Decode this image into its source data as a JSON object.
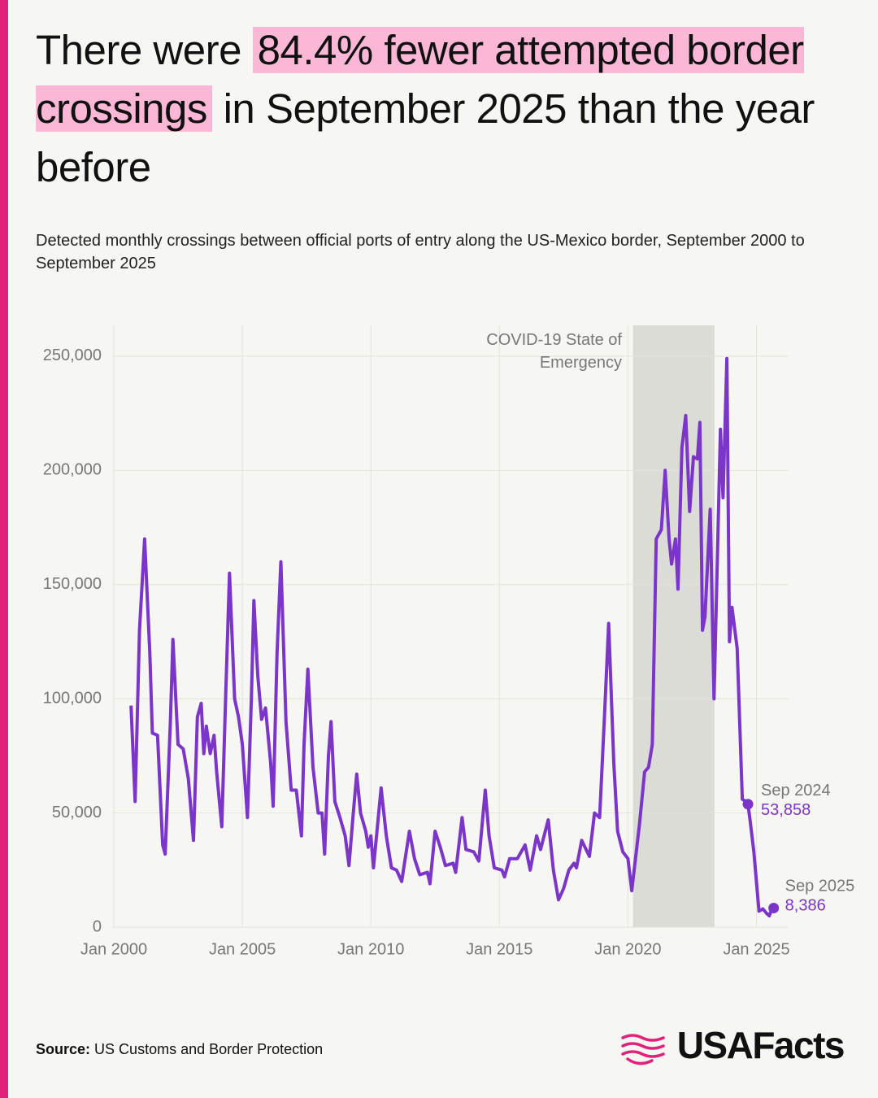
{
  "chart_data": {
    "type": "line",
    "title_parts": [
      "There were ",
      "84.4% fewer attempted border crossings",
      " in September 2025 than the year before"
    ],
    "subtitle": "Detected monthly crossings between official ports of entry along the US-Mexico border, September 2000 to September 2025",
    "color": "#7b35c9",
    "grid": true,
    "xlim": [
      2000,
      2026.25
    ],
    "xticks": [
      {
        "value": 2000,
        "label": "Jan 2000"
      },
      {
        "value": 2005,
        "label": "Jan 2005"
      },
      {
        "value": 2010,
        "label": "Jan 2010"
      },
      {
        "value": 2015,
        "label": "Jan 2015"
      },
      {
        "value": 2020,
        "label": "Jan 2020"
      },
      {
        "value": 2025,
        "label": "Jan 2025"
      }
    ],
    "ylim": [
      0,
      263500
    ],
    "yticks": [
      0,
      {
        "value": 50000,
        "label": "50,000"
      },
      {
        "value": 100000,
        "label": "100,000"
      },
      {
        "value": 150000,
        "label": "150,000"
      },
      {
        "value": 200000,
        "label": "200,000"
      },
      {
        "value": 250000,
        "label": "250,000"
      }
    ],
    "shaded_region": {
      "label": "COVID-19 State of Emergency",
      "x": [
        2020.2,
        2023.37
      ]
    },
    "x": [
      2000.67,
      2000.83,
      2001.0,
      2001.2,
      2001.4,
      2001.5,
      2001.7,
      2001.9,
      2002.0,
      2002.2,
      2002.3,
      2002.5,
      2002.7,
      2002.9,
      2003.1,
      2003.25,
      2003.4,
      2003.5,
      2003.6,
      2003.75,
      2003.9,
      2004.0,
      2004.2,
      2004.35,
      2004.5,
      2004.7,
      2004.85,
      2005.0,
      2005.2,
      2005.35,
      2005.45,
      2005.6,
      2005.75,
      2005.9,
      2006.1,
      2006.2,
      2006.35,
      2006.5,
      2006.7,
      2006.9,
      2007.1,
      2007.3,
      2007.4,
      2007.55,
      2007.75,
      2007.95,
      2008.1,
      2008.2,
      2008.35,
      2008.45,
      2008.6,
      2008.8,
      2009.0,
      2009.15,
      2009.3,
      2009.45,
      2009.6,
      2009.8,
      2009.9,
      2010.0,
      2010.1,
      2010.4,
      2010.6,
      2010.8,
      2011.0,
      2011.2,
      2011.5,
      2011.7,
      2011.9,
      2012.2,
      2012.3,
      2012.5,
      2012.7,
      2012.9,
      2013.2,
      2013.3,
      2013.55,
      2013.7,
      2014.0,
      2014.2,
      2014.45,
      2014.6,
      2014.8,
      2015.1,
      2015.2,
      2015.4,
      2015.7,
      2016.0,
      2016.2,
      2016.45,
      2016.6,
      2016.9,
      2017.1,
      2017.3,
      2017.5,
      2017.7,
      2017.9,
      2018.0,
      2018.2,
      2018.5,
      2018.7,
      2018.9,
      2019.1,
      2019.25,
      2019.45,
      2019.6,
      2019.8,
      2020.0,
      2020.15,
      2020.45,
      2020.65,
      2020.8,
      2020.95,
      2021.1,
      2021.3,
      2021.45,
      2021.6,
      2021.7,
      2021.85,
      2021.95,
      2022.1,
      2022.25,
      2022.4,
      2022.55,
      2022.7,
      2022.8,
      2022.9,
      2023.0,
      2023.2,
      2023.35,
      2023.6,
      2023.7,
      2023.85,
      2023.95,
      2024.05,
      2024.25,
      2024.45,
      2024.6,
      2024.67,
      2024.75,
      2024.9,
      2025.1,
      2025.25,
      2025.4,
      2025.5,
      2025.6,
      2025.67
    ],
    "values": [
      97000,
      55000,
      130000,
      170000,
      120000,
      85000,
      84000,
      36000,
      32000,
      90000,
      126000,
      80000,
      78000,
      65000,
      38000,
      92000,
      98000,
      76000,
      88000,
      76000,
      84000,
      68000,
      44000,
      100000,
      155000,
      100000,
      92000,
      80000,
      48000,
      100000,
      143000,
      110000,
      91000,
      96000,
      72000,
      53000,
      120000,
      160000,
      90000,
      60000,
      60000,
      40000,
      80000,
      113000,
      70000,
      50000,
      50000,
      32000,
      75000,
      90000,
      55000,
      48000,
      40000,
      27000,
      48000,
      67000,
      50000,
      42000,
      35000,
      40000,
      26000,
      61000,
      40000,
      26000,
      25000,
      20000,
      42000,
      30000,
      23000,
      24000,
      19000,
      42000,
      35000,
      27000,
      28000,
      24000,
      48000,
      34000,
      33000,
      29000,
      60000,
      40000,
      26000,
      25000,
      22000,
      30000,
      30000,
      36000,
      25000,
      40000,
      34000,
      47000,
      25000,
      12000,
      17000,
      25000,
      28000,
      26000,
      38000,
      31000,
      50000,
      48000,
      95000,
      133000,
      72000,
      42000,
      33000,
      30000,
      16000,
      45000,
      68000,
      70000,
      80000,
      170000,
      174000,
      200000,
      170000,
      159000,
      170000,
      148000,
      210000,
      224000,
      182000,
      206000,
      205000,
      221000,
      130000,
      136000,
      183000,
      100000,
      218000,
      188000,
      249000,
      125000,
      140000,
      122000,
      56000,
      55000,
      53858,
      47000,
      33000,
      7000,
      8000,
      6000,
      5000,
      8000,
      8386
    ],
    "annotations": [
      {
        "label": "Sep 2024",
        "x": 2024.67,
        "value": 53858,
        "value_label": "53,858"
      },
      {
        "label": "Sep 2025",
        "x": 2025.67,
        "value": 8386,
        "value_label": "8,386"
      }
    ],
    "source_label": "Source:",
    "source": "US Customs and Border Protection",
    "logo": "USAFacts"
  }
}
